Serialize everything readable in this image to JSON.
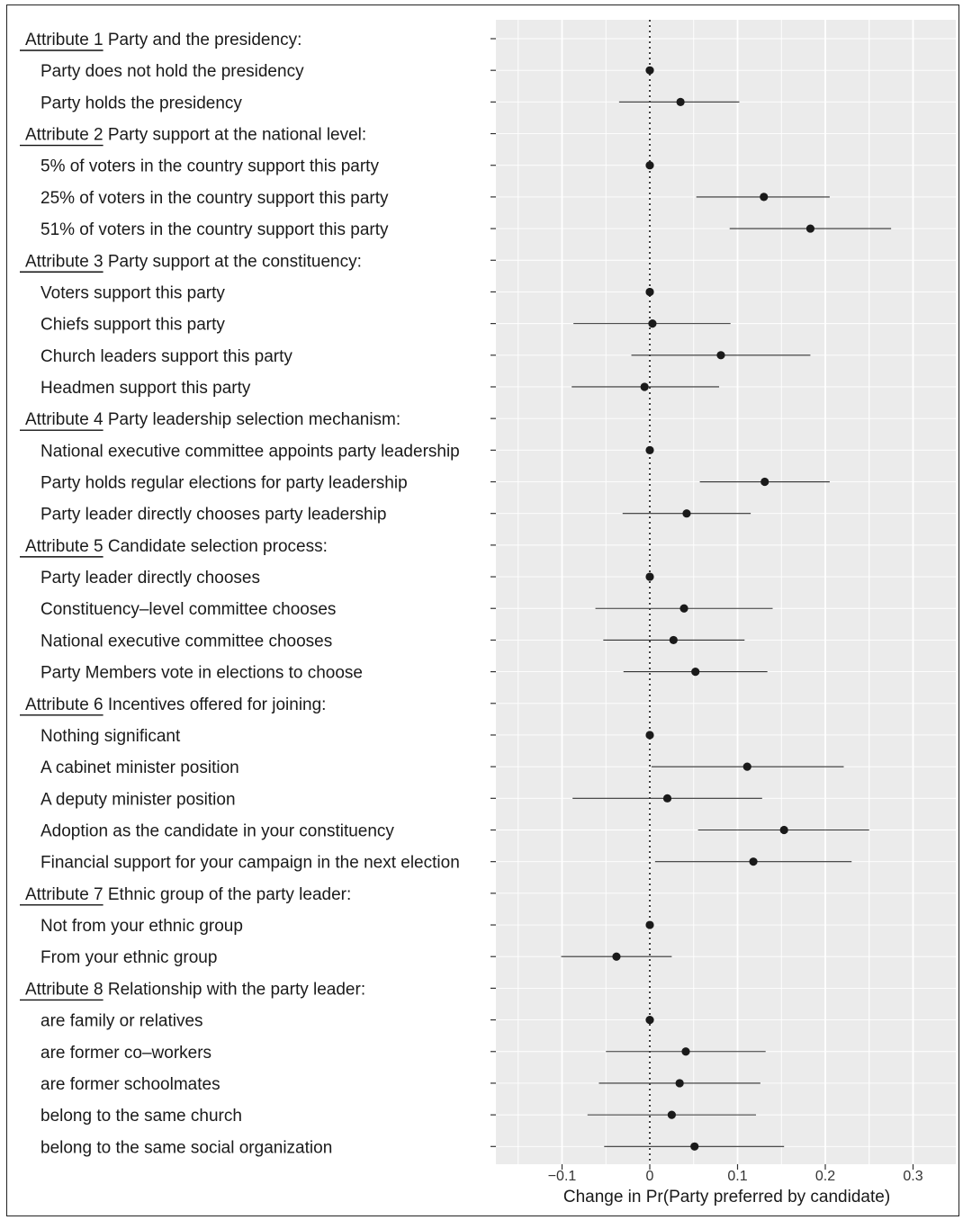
{
  "chart_data": {
    "type": "scatter",
    "subtype": "coefficient-plot",
    "xlabel": "Change in Pr(Party preferred by candidate)",
    "xlim": [
      -0.175,
      0.35
    ],
    "xticks": [
      {
        "value": -0.1,
        "label": "−0.1"
      },
      {
        "value": 0,
        "label": "0"
      },
      {
        "value": 0.1,
        "label": "0.1"
      },
      {
        "value": 0.2,
        "label": "0.2"
      },
      {
        "value": 0.3,
        "label": "0.3"
      }
    ],
    "reference_line": 0,
    "colors": {
      "panel": "#ebebeb",
      "grid": "#ffffff",
      "point": "#1a1a1a",
      "line": "#333333"
    },
    "rows": [
      {
        "kind": "header",
        "prefix": "Attribute 1",
        "label": "Party and the presidency:"
      },
      {
        "kind": "level",
        "label": "Party does not hold the presidency",
        "estimate": 0
      },
      {
        "kind": "level",
        "label": "Party holds the presidency",
        "estimate": 0.035,
        "ci": [
          -0.035,
          0.102
        ]
      },
      {
        "kind": "header",
        "prefix": "Attribute 2",
        "label": "Party support at the national level:"
      },
      {
        "kind": "level",
        "label": "5% of voters in the country support this party",
        "estimate": 0
      },
      {
        "kind": "level",
        "label": "25% of voters in the country support this party",
        "estimate": 0.13,
        "ci": [
          0.053,
          0.205
        ]
      },
      {
        "kind": "level",
        "label": "51% of voters in the country support this party",
        "estimate": 0.183,
        "ci": [
          0.091,
          0.275
        ]
      },
      {
        "kind": "header",
        "prefix": "Attribute 3",
        "label": "Party support at the constituency:"
      },
      {
        "kind": "level",
        "label": "Voters support this party",
        "estimate": 0
      },
      {
        "kind": "level",
        "label": "Chiefs support this party",
        "estimate": 0.003,
        "ci": [
          -0.087,
          0.092
        ]
      },
      {
        "kind": "level",
        "label": "Church leaders support this party",
        "estimate": 0.081,
        "ci": [
          -0.021,
          0.183
        ]
      },
      {
        "kind": "level",
        "label": "Headmen support this party",
        "estimate": -0.006,
        "ci": [
          -0.089,
          0.079
        ]
      },
      {
        "kind": "header",
        "prefix": "Attribute 4",
        "label": "Party leadership selection mechanism:"
      },
      {
        "kind": "level",
        "label": "National executive committee appoints party leadership",
        "estimate": 0
      },
      {
        "kind": "level",
        "label": "Party holds regular elections for party leadership",
        "estimate": 0.131,
        "ci": [
          0.057,
          0.205
        ]
      },
      {
        "kind": "level",
        "label": "Party leader directly chooses party leadership",
        "estimate": 0.042,
        "ci": [
          -0.031,
          0.115
        ]
      },
      {
        "kind": "header",
        "prefix": "Attribute 5",
        "label": "Candidate selection process:"
      },
      {
        "kind": "level",
        "label": "Party leader directly chooses",
        "estimate": 0
      },
      {
        "kind": "level",
        "label": "Constituency–level committee chooses",
        "estimate": 0.039,
        "ci": [
          -0.062,
          0.14
        ]
      },
      {
        "kind": "level",
        "label": "National executive committee chooses",
        "estimate": 0.027,
        "ci": [
          -0.053,
          0.108
        ]
      },
      {
        "kind": "level",
        "label": "Party Members vote in elections to choose",
        "estimate": 0.052,
        "ci": [
          -0.03,
          0.134
        ]
      },
      {
        "kind": "header",
        "prefix": "Attribute 6",
        "label": "Incentives offered for joining:"
      },
      {
        "kind": "level",
        "label": "Nothing significant",
        "estimate": 0
      },
      {
        "kind": "level",
        "label": "A cabinet minister position",
        "estimate": 0.111,
        "ci": [
          0.002,
          0.221
        ]
      },
      {
        "kind": "level",
        "label": "A deputy minister position",
        "estimate": 0.02,
        "ci": [
          -0.088,
          0.128
        ]
      },
      {
        "kind": "level",
        "label": "Adoption as the candidate in your constituency",
        "estimate": 0.153,
        "ci": [
          0.055,
          0.25
        ]
      },
      {
        "kind": "level",
        "label": "Financial support for your campaign in the next election",
        "estimate": 0.118,
        "ci": [
          0.006,
          0.23
        ]
      },
      {
        "kind": "header",
        "prefix": "Attribute 7",
        "label": "Ethnic group of the party leader:"
      },
      {
        "kind": "level",
        "label": "Not from your ethnic group",
        "estimate": 0
      },
      {
        "kind": "level",
        "label": "From your ethnic group",
        "estimate": -0.038,
        "ci": [
          -0.101,
          0.025
        ]
      },
      {
        "kind": "header",
        "prefix": "Attribute 8",
        "label": "Relationship with the party leader:"
      },
      {
        "kind": "level",
        "label": "are family or relatives",
        "estimate": 0
      },
      {
        "kind": "level",
        "label": "are former co–workers",
        "estimate": 0.041,
        "ci": [
          -0.05,
          0.132
        ]
      },
      {
        "kind": "level",
        "label": "are former schoolmates",
        "estimate": 0.034,
        "ci": [
          -0.058,
          0.126
        ]
      },
      {
        "kind": "level",
        "label": "belong to the same church",
        "estimate": 0.025,
        "ci": [
          -0.071,
          0.121
        ]
      },
      {
        "kind": "level",
        "label": "belong to the same social organization",
        "estimate": 0.051,
        "ci": [
          -0.052,
          0.153
        ]
      }
    ]
  }
}
